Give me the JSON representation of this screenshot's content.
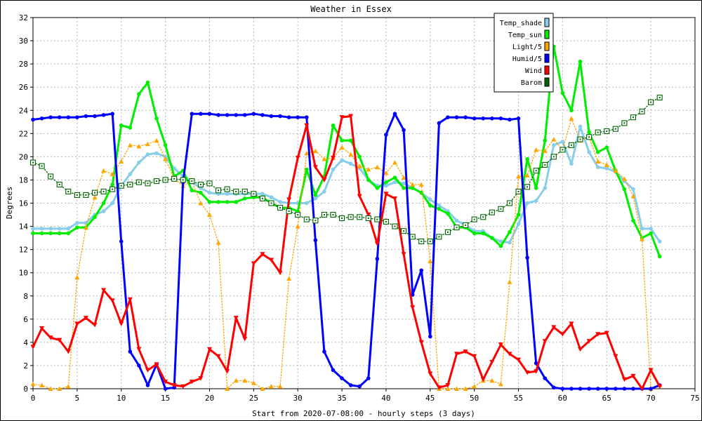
{
  "chart_data": {
    "type": "line",
    "title": "Weather in Essex",
    "xlabel": "Start from 2020-07-08:00 - hourly steps (3 days)",
    "ylabel": "Degrees",
    "xlim": [
      0,
      75
    ],
    "ylim": [
      0,
      32
    ],
    "xticks": [
      0,
      5,
      10,
      15,
      20,
      25,
      30,
      35,
      40,
      45,
      50,
      55,
      60,
      65,
      70,
      75
    ],
    "yticks": [
      0,
      2,
      4,
      6,
      8,
      10,
      12,
      14,
      16,
      18,
      20,
      22,
      24,
      26,
      28,
      30,
      32
    ],
    "grid": true,
    "legend_position": "top-right",
    "series": [
      {
        "name": "Temp_shade",
        "color": "#87ceeb",
        "style": "solid",
        "marker": "dot",
        "values": [
          13.8,
          13.8,
          13.8,
          13.8,
          13.8,
          14.3,
          14.3,
          15.0,
          15.3,
          16.0,
          17.5,
          18.5,
          19.5,
          20.2,
          20.3,
          20.0,
          19.0,
          18.3,
          17.8,
          17.3,
          16.9,
          16.8,
          16.8,
          16.8,
          16.8,
          16.8,
          16.8,
          16.5,
          16.1,
          16.0,
          16.0,
          16.0,
          16.4,
          17.0,
          18.9,
          19.7,
          19.4,
          19.0,
          18.0,
          17.5,
          17.5,
          17.8,
          17.7,
          17.3,
          16.9,
          16.3,
          15.8,
          15.3,
          14.5,
          14.1,
          13.6,
          13.6,
          13.0,
          12.7,
          12.6,
          14.2,
          16.0,
          16.2,
          17.3,
          21.0,
          21.3,
          19.4,
          22.6,
          20.4,
          19.1,
          19.0,
          18.7,
          17.9,
          17.2,
          13.8,
          13.8,
          12.7
        ]
      },
      {
        "name": "Temp_sun",
        "color": "#00ee00",
        "style": "solid",
        "marker": "dot",
        "values": [
          13.4,
          13.4,
          13.4,
          13.4,
          13.4,
          13.9,
          13.9,
          14.8,
          16.0,
          17.6,
          22.7,
          22.5,
          25.4,
          26.4,
          23.3,
          21.0,
          18.3,
          18.8,
          17.1,
          16.9,
          16.1,
          16.1,
          16.1,
          16.1,
          16.4,
          16.5,
          16.5,
          16.0,
          15.6,
          15.6,
          15.3,
          18.9,
          16.7,
          18.3,
          22.7,
          21.4,
          21.4,
          20.0,
          18.0,
          17.3,
          17.8,
          18.2,
          17.3,
          17.3,
          16.9,
          15.8,
          15.5,
          15.1,
          13.9,
          13.9,
          13.4,
          13.4,
          13.0,
          12.3,
          13.5,
          15.0,
          19.8,
          17.3,
          21.4,
          29.5,
          25.5,
          24.0,
          28.2,
          22.1,
          20.4,
          20.8,
          18.8,
          17.2,
          14.5,
          13.0,
          13.4,
          11.4
        ]
      },
      {
        "name": "Light/5",
        "color": "#ffa500",
        "style": "dotted",
        "marker": "triangle",
        "values": [
          0.4,
          0.3,
          0.0,
          0.0,
          0.2,
          9.6,
          13.9,
          16.5,
          18.8,
          18.5,
          19.6,
          21.0,
          20.9,
          21.1,
          21.4,
          19.8,
          18.1,
          17.5,
          17.9,
          16.0,
          15.0,
          12.6,
          0.0,
          0.7,
          0.7,
          0.5,
          0.0,
          0.2,
          0.2,
          9.5,
          14.0,
          20.3,
          20.5,
          19.8,
          19.9,
          20.8,
          20.2,
          19.2,
          18.9,
          19.1,
          18.6,
          19.5,
          18.2,
          17.6,
          17.6,
          11.0,
          0.0,
          0.0,
          0.0,
          0.0,
          0.2,
          0.7,
          0.7,
          0.4,
          9.2,
          18.3,
          18.4,
          20.6,
          20.5,
          21.5,
          20.6,
          23.3,
          21.4,
          21.7,
          19.6,
          19.3,
          18.8,
          18.1,
          16.6,
          12.9,
          0.0,
          0.3
        ]
      },
      {
        "name": "Humid/5",
        "color": "#0000ff",
        "style": "solid",
        "marker": "dot",
        "values": [
          23.2,
          23.3,
          23.4,
          23.4,
          23.4,
          23.4,
          23.5,
          23.5,
          23.6,
          23.7,
          12.7,
          3.2,
          2.0,
          0.3,
          2.1,
          0.0,
          0.1,
          17.8,
          23.7,
          23.7,
          23.7,
          23.6,
          23.6,
          23.6,
          23.6,
          23.7,
          23.6,
          23.5,
          23.5,
          23.4,
          23.4,
          23.4,
          12.8,
          3.2,
          1.6,
          0.9,
          0.3,
          0.2,
          0.9,
          11.2,
          21.9,
          23.7,
          22.3,
          8.1,
          10.2,
          4.5,
          22.9,
          23.4,
          23.4,
          23.4,
          23.3,
          23.3,
          23.3,
          23.3,
          23.2,
          23.3,
          11.3,
          2.2,
          0.9,
          0.1,
          0.0,
          0.0,
          0.0,
          0.0,
          0.0,
          0.0,
          0.0,
          0.0,
          0.0,
          0.0,
          0.0,
          0.3
        ]
      },
      {
        "name": "Wind",
        "color": "#ff0000",
        "style": "solid",
        "marker": "triangle-down",
        "values": [
          3.6,
          5.2,
          4.4,
          4.2,
          3.2,
          5.6,
          6.1,
          5.5,
          8.5,
          7.6,
          5.6,
          7.7,
          3.4,
          1.6,
          2.1,
          0.6,
          0.3,
          0.2,
          0.6,
          0.9,
          3.4,
          2.8,
          1.5,
          6.1,
          4.3,
          10.8,
          11.6,
          11.1,
          10.0,
          16.3,
          19.9,
          22.7,
          19.1,
          18.0,
          19.9,
          23.4,
          23.5,
          16.6,
          15.0,
          12.5,
          16.8,
          16.4,
          11.6,
          7.0,
          4.0,
          1.3,
          0.1,
          0.3,
          3.0,
          3.2,
          2.8,
          0.8,
          2.3,
          3.8,
          3.0,
          2.5,
          1.4,
          1.5,
          4.1,
          5.3,
          4.7,
          5.6,
          3.4,
          4.1,
          4.7,
          4.8,
          2.8,
          0.8,
          1.1,
          0.0,
          1.6,
          0.2
        ]
      },
      {
        "name": "Barom",
        "color": "#006400",
        "style": "dotted",
        "marker": "open-square",
        "values": [
          19.5,
          19.2,
          18.3,
          17.6,
          17.0,
          16.7,
          16.7,
          16.9,
          17.0,
          17.2,
          17.5,
          17.6,
          17.8,
          17.7,
          17.9,
          18.0,
          18.1,
          18.0,
          17.9,
          17.6,
          17.7,
          17.1,
          17.2,
          17.0,
          17.0,
          16.8,
          16.4,
          16.0,
          15.6,
          15.3,
          15.0,
          14.6,
          14.5,
          15.0,
          15.0,
          14.7,
          14.8,
          14.8,
          14.7,
          14.6,
          14.4,
          14.0,
          13.6,
          13.1,
          12.7,
          12.7,
          13.1,
          13.5,
          13.9,
          14.1,
          14.6,
          14.8,
          15.2,
          15.5,
          16.0,
          17.0,
          17.4,
          18.8,
          19.3,
          20.0,
          20.6,
          21.0,
          21.5,
          21.7,
          22.1,
          22.2,
          22.4,
          22.9,
          23.4,
          23.9,
          24.7,
          25.1
        ]
      }
    ]
  }
}
